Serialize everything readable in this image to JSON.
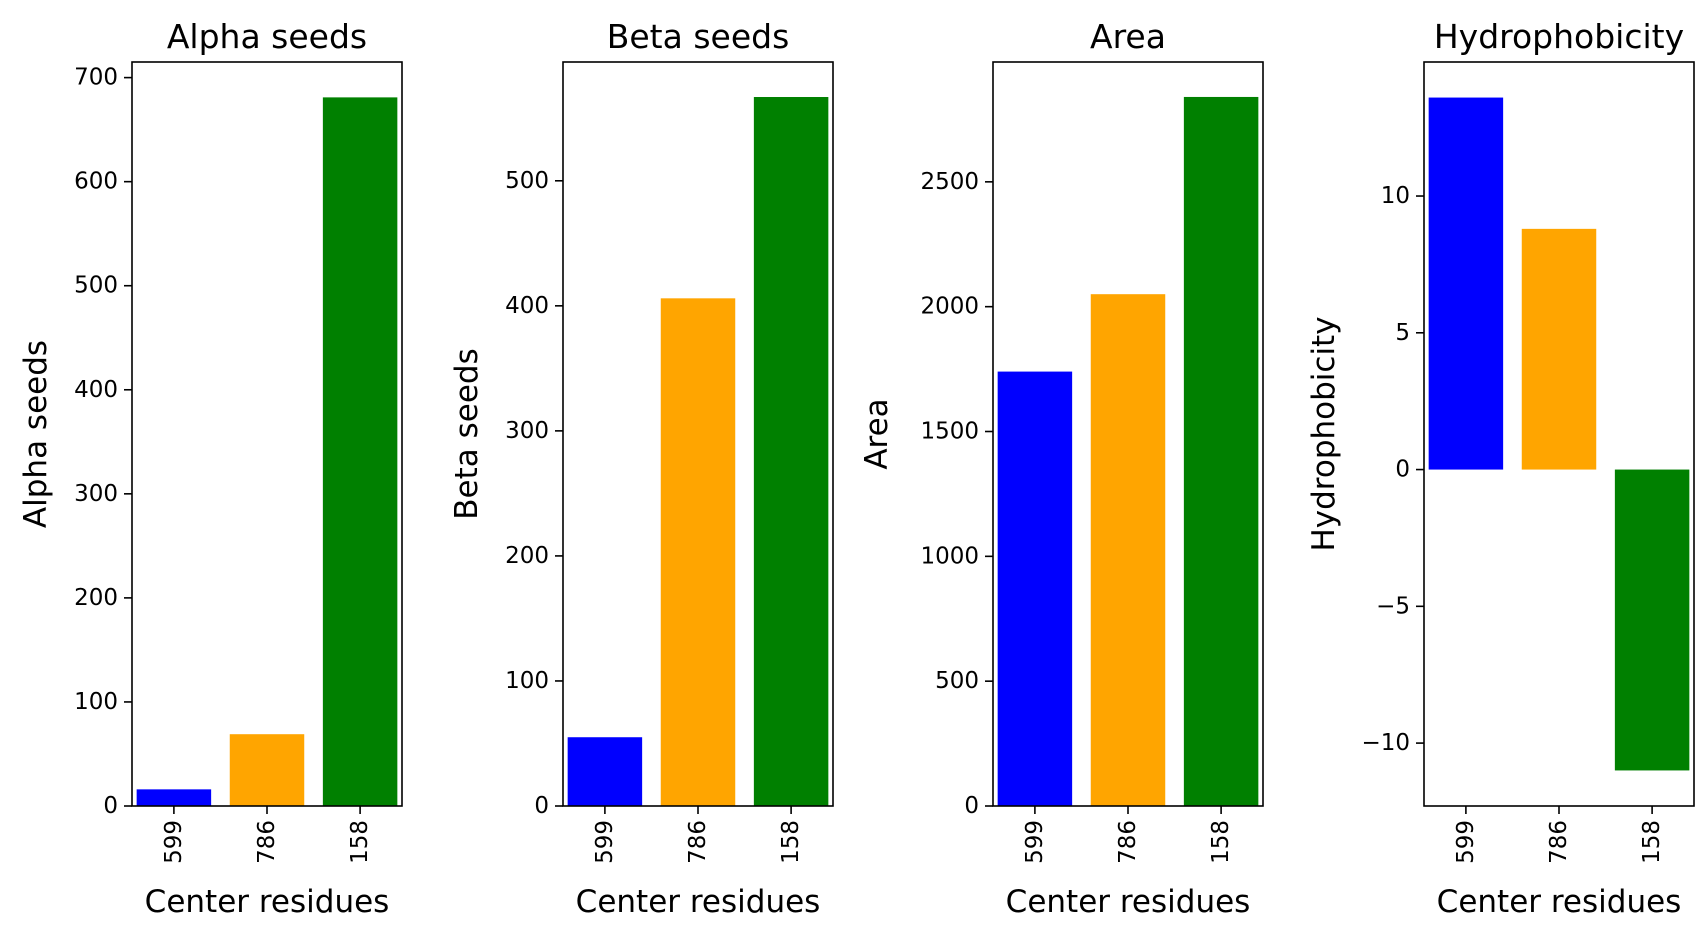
{
  "chart_data": [
    {
      "type": "bar",
      "title": "Alpha seeds",
      "xlabel": "Center residues",
      "ylabel": "Alpha seeds",
      "categories": [
        "599",
        "786",
        "158"
      ],
      "values": [
        16,
        69,
        681
      ],
      "colors": [
        "#0000ff",
        "#ffa500",
        "#008000"
      ],
      "ylim": [
        0,
        715
      ],
      "yticks": [
        0,
        100,
        200,
        300,
        400,
        500,
        600,
        700
      ],
      "ytick_labels": [
        "0",
        "100",
        "200",
        "300",
        "400",
        "500",
        "600",
        "700"
      ],
      "grid": false,
      "legend": false
    },
    {
      "type": "bar",
      "title": "Beta seeds",
      "xlabel": "Center residues",
      "ylabel": "Beta seeds",
      "categories": [
        "599",
        "786",
        "158"
      ],
      "values": [
        55,
        406,
        567
      ],
      "colors": [
        "#0000ff",
        "#ffa500",
        "#008000"
      ],
      "ylim": [
        0,
        595
      ],
      "yticks": [
        0,
        100,
        200,
        300,
        400,
        500
      ],
      "ytick_labels": [
        "0",
        "100",
        "200",
        "300",
        "400",
        "500"
      ],
      "grid": false,
      "legend": false
    },
    {
      "type": "bar",
      "title": "Area",
      "xlabel": "Center residues",
      "ylabel": "Area",
      "categories": [
        "599",
        "786",
        "158"
      ],
      "values": [
        1740,
        2050,
        2840
      ],
      "colors": [
        "#0000ff",
        "#ffa500",
        "#008000"
      ],
      "ylim": [
        0,
        2980
      ],
      "yticks": [
        0,
        500,
        1000,
        1500,
        2000,
        2500
      ],
      "ytick_labels": [
        "0",
        "500",
        "1000",
        "1500",
        "2000",
        "2500"
      ],
      "grid": false,
      "legend": false
    },
    {
      "type": "bar",
      "title": "Hydrophobicity",
      "xlabel": "Center residues",
      "ylabel": "Hydrophobicity",
      "categories": [
        "599",
        "786",
        "158"
      ],
      "values": [
        13.6,
        8.8,
        -11.0
      ],
      "colors": [
        "#0000ff",
        "#ffa500",
        "#008000"
      ],
      "ylim": [
        -12.3,
        14.9
      ],
      "yticks": [
        -10,
        -5,
        0,
        5,
        10
      ],
      "ytick_labels": [
        "−10",
        "−5",
        "0",
        "5",
        "10"
      ],
      "grid": false,
      "legend": false
    }
  ]
}
